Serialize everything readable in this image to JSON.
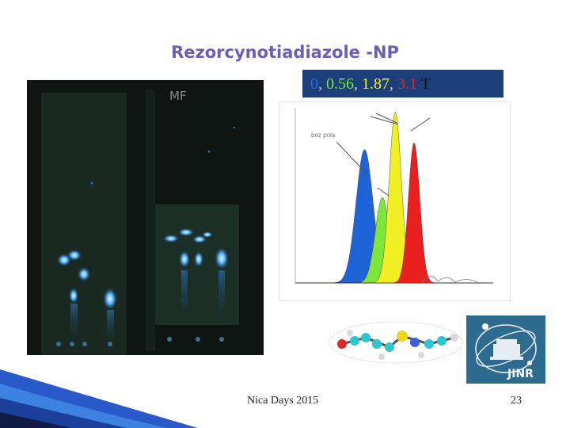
{
  "slide": {
    "title": "Rezorcynotiadiazole -NP",
    "tlc_label": "MF",
    "field_values": [
      {
        "text": "0",
        "color": "#1c6de0"
      },
      {
        "text": ", ",
        "color": "#c9c9c9"
      },
      {
        "text": "0.56",
        "color": "#7ce33a"
      },
      {
        "text": ", ",
        "color": "#c9c9c9"
      },
      {
        "text": "1.87",
        "color": "#f3ef2a"
      },
      {
        "text": ", ",
        "color": "#c9c9c9"
      },
      {
        "text": "3.1",
        "color": "#e52424"
      },
      {
        "text": " T",
        "color": "#111111"
      }
    ],
    "chart_annotation": "bez pola",
    "footer": "Nica Days 2015",
    "page_number": "23",
    "logo_text": "JINR"
  },
  "chart_data": {
    "type": "area",
    "title": "",
    "xlabel": "",
    "ylabel": "",
    "series": [
      {
        "name": "0",
        "color": "#1f63d8",
        "center": 0.35,
        "width": 0.09,
        "peak": 0.78
      },
      {
        "name": "0.56",
        "color": "#7ee63a",
        "center": 0.44,
        "width": 0.075,
        "peak": 0.5
      },
      {
        "name": "1.87",
        "color": "#f1ef24",
        "center": 0.505,
        "width": 0.065,
        "peak": 1.0
      },
      {
        "name": "3.1",
        "color": "#ea1f1f",
        "center": 0.6,
        "width": 0.06,
        "peak": 0.82
      }
    ]
  }
}
